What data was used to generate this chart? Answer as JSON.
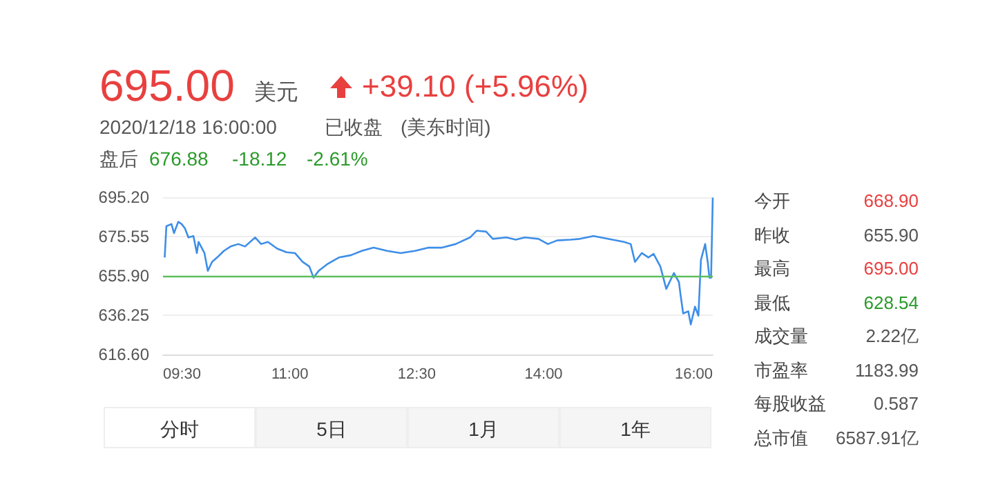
{
  "chart_data": {
    "type": "line",
    "annotations": [
      "695.00",
      "美元",
      "+39.10 (+5.96%)",
      "2020/12/18 16:00:00",
      "已收盘",
      "(美东时间)",
      "盘后",
      "676.88",
      "-18.12",
      "-2.61%",
      "今开",
      "668.90",
      "昨收",
      "655.90",
      "最高",
      "695.00",
      "最低",
      "628.54",
      "成交量",
      "2.22亿",
      "市盈率",
      "1183.99",
      "每股收益",
      "0.587",
      "总市值",
      "6587.91亿",
      "分时",
      "5日",
      "1月",
      "1年"
    ],
    "series": [
      {
        "color": "#3d8ee8",
        "x": [
          9.52,
          9.54,
          9.6,
          9.63,
          9.68,
          9.72,
          9.76,
          9.8,
          9.86,
          9.9,
          9.92,
          9.99,
          10.03,
          10.08,
          10.14,
          10.22,
          10.3,
          10.39,
          10.47,
          10.59,
          10.66,
          10.74,
          10.85,
          10.96,
          11.06,
          11.15,
          11.23,
          11.28,
          11.34,
          11.44,
          11.58,
          11.72,
          11.85,
          11.99,
          12.15,
          12.31,
          12.48,
          12.64,
          12.8,
          12.96,
          13.13,
          13.21,
          13.32,
          13.4,
          13.56,
          13.67,
          13.78,
          13.94,
          14.05,
          14.16,
          14.32,
          14.43,
          14.59,
          14.76,
          14.95,
          15.03,
          15.08,
          15.16,
          15.24,
          15.3,
          15.38,
          15.45,
          15.54,
          15.6,
          15.62,
          15.65,
          15.71,
          15.74,
          15.79,
          15.83,
          15.86,
          15.91,
          15.94,
          15.96,
          15.98,
          16.0
        ],
        "values": [
          665.1,
          680.7,
          681.8,
          677.3,
          682.9,
          681.8,
          679.6,
          675.1,
          675.8,
          667.3,
          672.9,
          667.3,
          658.4,
          662.9,
          665.1,
          668.4,
          670.6,
          671.8,
          670.6,
          675.1,
          671.8,
          672.9,
          669.5,
          667.7,
          667.3,
          662.9,
          660.6,
          655.0,
          658.4,
          661.7,
          665.1,
          666.2,
          668.4,
          670.0,
          668.4,
          667.3,
          668.4,
          670.0,
          670.0,
          671.8,
          675.1,
          678.5,
          678.0,
          674.4,
          675.1,
          674.0,
          675.1,
          674.4,
          671.8,
          673.6,
          674.0,
          674.4,
          675.8,
          674.4,
          672.9,
          671.8,
          662.9,
          667.3,
          665.1,
          666.9,
          660.6,
          649.4,
          657.3,
          652.8,
          646.1,
          637.1,
          638.2,
          631.6,
          640.5,
          636.0,
          663.9,
          671.8,
          662.9,
          655.0,
          655.0,
          695.0
        ]
      }
    ],
    "xlim": [
      9.5,
      16
    ],
    "xticks": [
      {
        "value": 9.5,
        "label": "09:30"
      },
      {
        "value": 11,
        "label": "11:00"
      },
      {
        "value": 12.5,
        "label": "12:30"
      },
      {
        "value": 14,
        "label": "14:00"
      },
      {
        "value": 16,
        "label": "16:00"
      }
    ],
    "ylim": [
      616.6,
      695.2
    ],
    "yticks": [
      {
        "value": 616.6,
        "label": "616.60"
      },
      {
        "value": 636.25,
        "label": "636.25"
      },
      {
        "value": 655.9,
        "label": "655.90"
      },
      {
        "value": 675.55,
        "label": "675.55"
      },
      {
        "value": 695.2,
        "label": "695.20"
      }
    ],
    "ref_lines": [
      {
        "axis": "y",
        "value": 655.9,
        "color": "#5cbf5c"
      }
    ],
    "grid": "y",
    "marker": "none",
    "line_style": "solid"
  }
}
